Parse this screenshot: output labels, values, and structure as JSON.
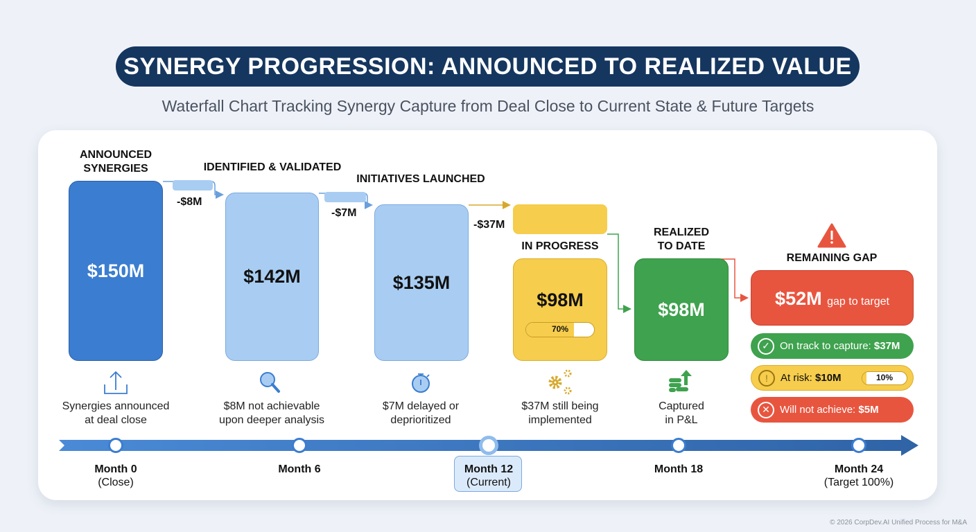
{
  "header": {
    "title": "SYNERGY PROGRESSION: ANNOUNCED TO REALIZED VALUE",
    "subtitle": "Waterfall Chart Tracking Synergy Capture from Deal Close to Current State & Future Targets"
  },
  "chart_data": {
    "type": "bar",
    "subtype": "waterfall",
    "categories": [
      "ANNOUNCED SYNERGIES",
      "IDENTIFIED & VALIDATED",
      "INITIATIVES LAUNCHED",
      "IN PROGRESS",
      "REALIZED TO DATE",
      "REMAINING GAP"
    ],
    "values": [
      150,
      142,
      135,
      98,
      98,
      52
    ],
    "value_labels": [
      "$150M",
      "$142M",
      "$135M",
      "$98M",
      "$98M",
      "$52M"
    ],
    "deltas": [
      {
        "label": "-$8M",
        "value": -8
      },
      {
        "label": "-$7M",
        "value": -7
      },
      {
        "label": "-$37M",
        "value": -37
      }
    ],
    "colors": [
      "#3b7dd0",
      "#a9cdf2",
      "#a9cdf2",
      "#f6cd4c",
      "#3fa24e",
      "#e8553f"
    ],
    "in_progress_pct": 70,
    "in_progress_pct_label": "70%",
    "gap_suffix": "gap to target",
    "descriptions": [
      [
        "Synergies announced",
        "at deal close"
      ],
      [
        "$8M not achievable",
        "upon deeper analysis"
      ],
      [
        "$7M delayed or",
        "deprioritized"
      ],
      [
        "$37M still being",
        "implemented"
      ],
      [
        "Captured",
        "in P&L"
      ]
    ],
    "icons": [
      "upload-icon",
      "magnifier-icon",
      "stopwatch-icon",
      "gears-icon",
      "coins-arrow-icon"
    ]
  },
  "gap_breakdown": [
    {
      "label": "On track to capture: ",
      "value": "$37M",
      "color": "#3fa24e",
      "icon": "check-circle-icon"
    },
    {
      "label": "At risk: ",
      "value": "$10M",
      "color": "#f6cd4c",
      "icon": "exclamation-circle-icon",
      "pct": 10,
      "pct_label": "10%"
    },
    {
      "label": "Will not achieve: ",
      "value": "$5M",
      "color": "#e8553f",
      "icon": "x-circle-icon"
    }
  ],
  "timeline": [
    {
      "label": "Month 0",
      "sub": "(Close)"
    },
    {
      "label": "Month 6",
      "sub": ""
    },
    {
      "label": "Month 12",
      "sub": "(Current)",
      "current": true
    },
    {
      "label": "Month 18",
      "sub": ""
    },
    {
      "label": "Month 24",
      "sub": "(Target 100%)"
    }
  ],
  "footer": "© 2026 CorpDev.AI Unified Process for M&A"
}
